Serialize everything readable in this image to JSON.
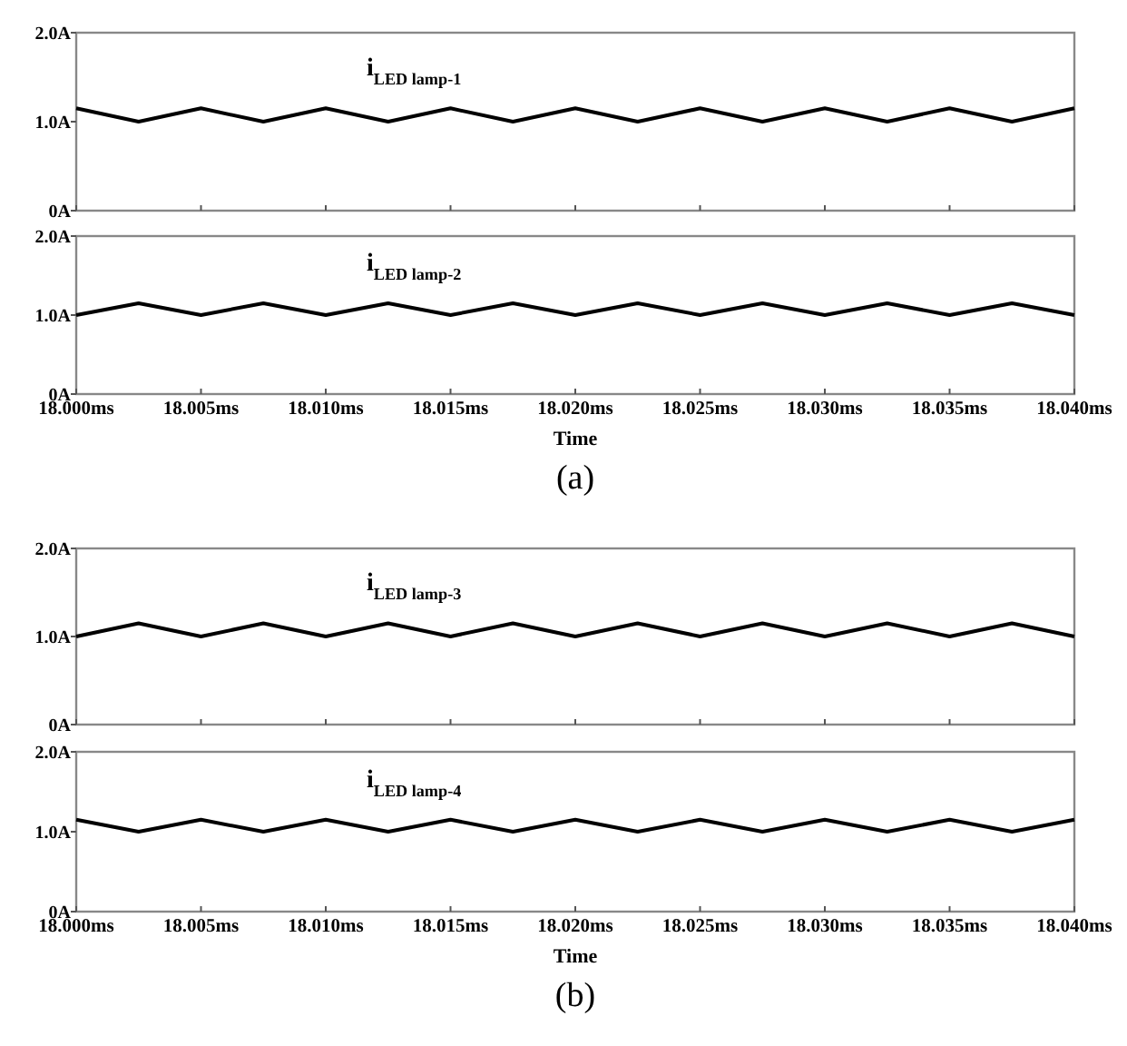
{
  "chart_data": [
    {
      "type": "line",
      "xlim": [
        18.0,
        18.04
      ],
      "ylim": [
        0,
        2
      ],
      "yticks": [
        {
          "value": 0,
          "label": "0A"
        },
        {
          "value": 1,
          "label": "1.0A"
        },
        {
          "value": 2,
          "label": "2.0A"
        }
      ],
      "xticks": [
        {
          "value": 18.0,
          "label": null
        },
        {
          "value": 18.005,
          "label": null
        },
        {
          "value": 18.01,
          "label": null
        },
        {
          "value": 18.015,
          "label": null
        },
        {
          "value": 18.02,
          "label": null
        },
        {
          "value": 18.025,
          "label": null
        },
        {
          "value": 18.03,
          "label": null
        },
        {
          "value": 18.035,
          "label": null
        },
        {
          "value": 18.04,
          "label": null
        }
      ],
      "tick_labels": "y",
      "grid": false,
      "x": [
        18.0,
        18.0025,
        18.005,
        18.0075,
        18.01,
        18.0125,
        18.015,
        18.0175,
        18.02,
        18.0225,
        18.025,
        18.0275,
        18.03,
        18.0325,
        18.035,
        18.0375,
        18.04
      ],
      "series": [
        {
          "name": "i$_{LED lamp-1}$",
          "color": "#000000",
          "values": [
            1.15,
            1.0,
            1.15,
            1.0,
            1.15,
            1.0,
            1.15,
            1.0,
            1.15,
            1.0,
            1.15,
            1.0,
            1.15,
            1.0,
            1.15,
            1.0,
            1.15
          ]
        }
      ]
    },
    {
      "type": "line",
      "xlim": [
        18.0,
        18.04
      ],
      "ylim": [
        0,
        2
      ],
      "yticks": [
        {
          "value": 0,
          "label": "0A"
        },
        {
          "value": 1,
          "label": "1.0A"
        },
        {
          "value": 2,
          "label": "2.0A"
        }
      ],
      "xticks": [
        {
          "value": 18.0,
          "label": "18.000ms"
        },
        {
          "value": 18.005,
          "label": "18.005ms"
        },
        {
          "value": 18.01,
          "label": "18.010ms"
        },
        {
          "value": 18.015,
          "label": "18.015ms"
        },
        {
          "value": 18.02,
          "label": "18.020ms"
        },
        {
          "value": 18.025,
          "label": "18.025ms"
        },
        {
          "value": 18.03,
          "label": "18.030ms"
        },
        {
          "value": 18.035,
          "label": "18.035ms"
        },
        {
          "value": 18.04,
          "label": "18.040ms"
        }
      ],
      "xlabel": "Time",
      "grid": false,
      "annotations": [
        "(a)"
      ],
      "x": [
        18.0,
        18.0025,
        18.005,
        18.0075,
        18.01,
        18.0125,
        18.015,
        18.0175,
        18.02,
        18.0225,
        18.025,
        18.0275,
        18.03,
        18.0325,
        18.035,
        18.0375,
        18.04
      ],
      "series": [
        {
          "name": "i$_{LED lamp-2}$",
          "color": "#000000",
          "values": [
            1.0,
            1.15,
            1.0,
            1.15,
            1.0,
            1.15,
            1.0,
            1.15,
            1.0,
            1.15,
            1.0,
            1.15,
            1.0,
            1.15,
            1.0,
            1.15,
            1.0
          ]
        }
      ]
    },
    {
      "type": "line",
      "xlim": [
        18.0,
        18.04
      ],
      "ylim": [
        0,
        2
      ],
      "yticks": [
        {
          "value": 0,
          "label": "0A"
        },
        {
          "value": 1,
          "label": "1.0A"
        },
        {
          "value": 2,
          "label": "2.0A"
        }
      ],
      "xticks": [
        {
          "value": 18.0,
          "label": null
        },
        {
          "value": 18.005,
          "label": null
        },
        {
          "value": 18.01,
          "label": null
        },
        {
          "value": 18.015,
          "label": null
        },
        {
          "value": 18.02,
          "label": null
        },
        {
          "value": 18.025,
          "label": null
        },
        {
          "value": 18.03,
          "label": null
        },
        {
          "value": 18.035,
          "label": null
        },
        {
          "value": 18.04,
          "label": null
        }
      ],
      "tick_labels": "y",
      "grid": false,
      "x": [
        18.0,
        18.0025,
        18.005,
        18.0075,
        18.01,
        18.0125,
        18.015,
        18.0175,
        18.02,
        18.0225,
        18.025,
        18.0275,
        18.03,
        18.0325,
        18.035,
        18.0375,
        18.04
      ],
      "series": [
        {
          "name": "i$_{LED lamp-3}$",
          "color": "#000000",
          "values": [
            1.0,
            1.15,
            1.0,
            1.15,
            1.0,
            1.15,
            1.0,
            1.15,
            1.0,
            1.15,
            1.0,
            1.15,
            1.0,
            1.15,
            1.0,
            1.15,
            1.0
          ]
        }
      ]
    },
    {
      "type": "line",
      "xlim": [
        18.0,
        18.04
      ],
      "ylim": [
        0,
        2
      ],
      "yticks": [
        {
          "value": 0,
          "label": "0A"
        },
        {
          "value": 1,
          "label": "1.0A"
        },
        {
          "value": 2,
          "label": "2.0A"
        }
      ],
      "xticks": [
        {
          "value": 18.0,
          "label": "18.000ms"
        },
        {
          "value": 18.005,
          "label": "18.005ms"
        },
        {
          "value": 18.01,
          "label": "18.010ms"
        },
        {
          "value": 18.015,
          "label": "18.015ms"
        },
        {
          "value": 18.02,
          "label": "18.020ms"
        },
        {
          "value": 18.025,
          "label": "18.025ms"
        },
        {
          "value": 18.03,
          "label": "18.030ms"
        },
        {
          "value": 18.035,
          "label": "18.035ms"
        },
        {
          "value": 18.04,
          "label": "18.040ms"
        }
      ],
      "xlabel": "Time",
      "grid": false,
      "annotations": [
        "(b)"
      ],
      "x": [
        18.0,
        18.0025,
        18.005,
        18.0075,
        18.01,
        18.0125,
        18.015,
        18.0175,
        18.02,
        18.0225,
        18.025,
        18.0275,
        18.03,
        18.0325,
        18.035,
        18.0375,
        18.04
      ],
      "series": [
        {
          "name": "i$_{LED lamp-4}$",
          "color": "#000000",
          "values": [
            1.15,
            1.0,
            1.15,
            1.0,
            1.15,
            1.0,
            1.15,
            1.0,
            1.15,
            1.0,
            1.15,
            1.0,
            1.15,
            1.0,
            1.15,
            1.0,
            1.15
          ]
        }
      ]
    }
  ]
}
